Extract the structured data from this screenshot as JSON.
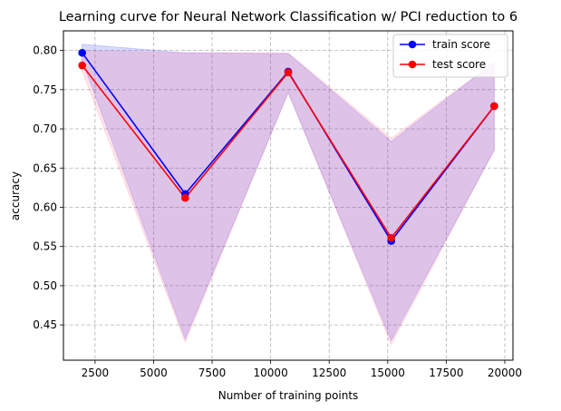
{
  "chart_data": {
    "type": "line",
    "title": "Learning curve for Neural Network Classification w/ PCI reduction to 6",
    "xlabel": "Number of training points",
    "ylabel": "accuracy",
    "x": [
      1950,
      6350,
      10750,
      15150,
      19550
    ],
    "xlim": [
      1150,
      20350
    ],
    "ylim": [
      0.405,
      0.825
    ],
    "xticks": [
      2500,
      5000,
      7500,
      10000,
      12500,
      15000,
      17500,
      20000
    ],
    "xtick_labels": [
      "2500",
      "5000",
      "7500",
      "10000",
      "12500",
      "15000",
      "17500",
      "20000"
    ],
    "yticks": [
      0.45,
      0.5,
      0.55,
      0.6,
      0.65,
      0.7,
      0.75,
      0.8
    ],
    "ytick_labels": [
      "0.45",
      "0.50",
      "0.55",
      "0.60",
      "0.65",
      "0.70",
      "0.75",
      "0.80"
    ],
    "grid": true,
    "grid_style": "dashed",
    "legend_position": "top-right",
    "series": [
      {
        "name": "train score",
        "color": "#0000ff",
        "fill_color": "#0000ff",
        "values": [
          0.797,
          0.617,
          0.773,
          0.557,
          0.729
        ],
        "band_lower": [
          0.787,
          0.432,
          0.746,
          0.43,
          0.673
        ],
        "band_upper": [
          0.808,
          0.797,
          0.796,
          0.684,
          0.785
        ]
      },
      {
        "name": "test score",
        "color": "#ff0000",
        "fill_color": "#ff4d6a",
        "values": [
          0.781,
          0.612,
          0.772,
          0.561,
          0.729
        ],
        "band_lower": [
          0.774,
          0.428,
          0.747,
          0.425,
          0.673
        ],
        "band_upper": [
          0.8,
          0.797,
          0.797,
          0.688,
          0.785
        ]
      }
    ]
  }
}
